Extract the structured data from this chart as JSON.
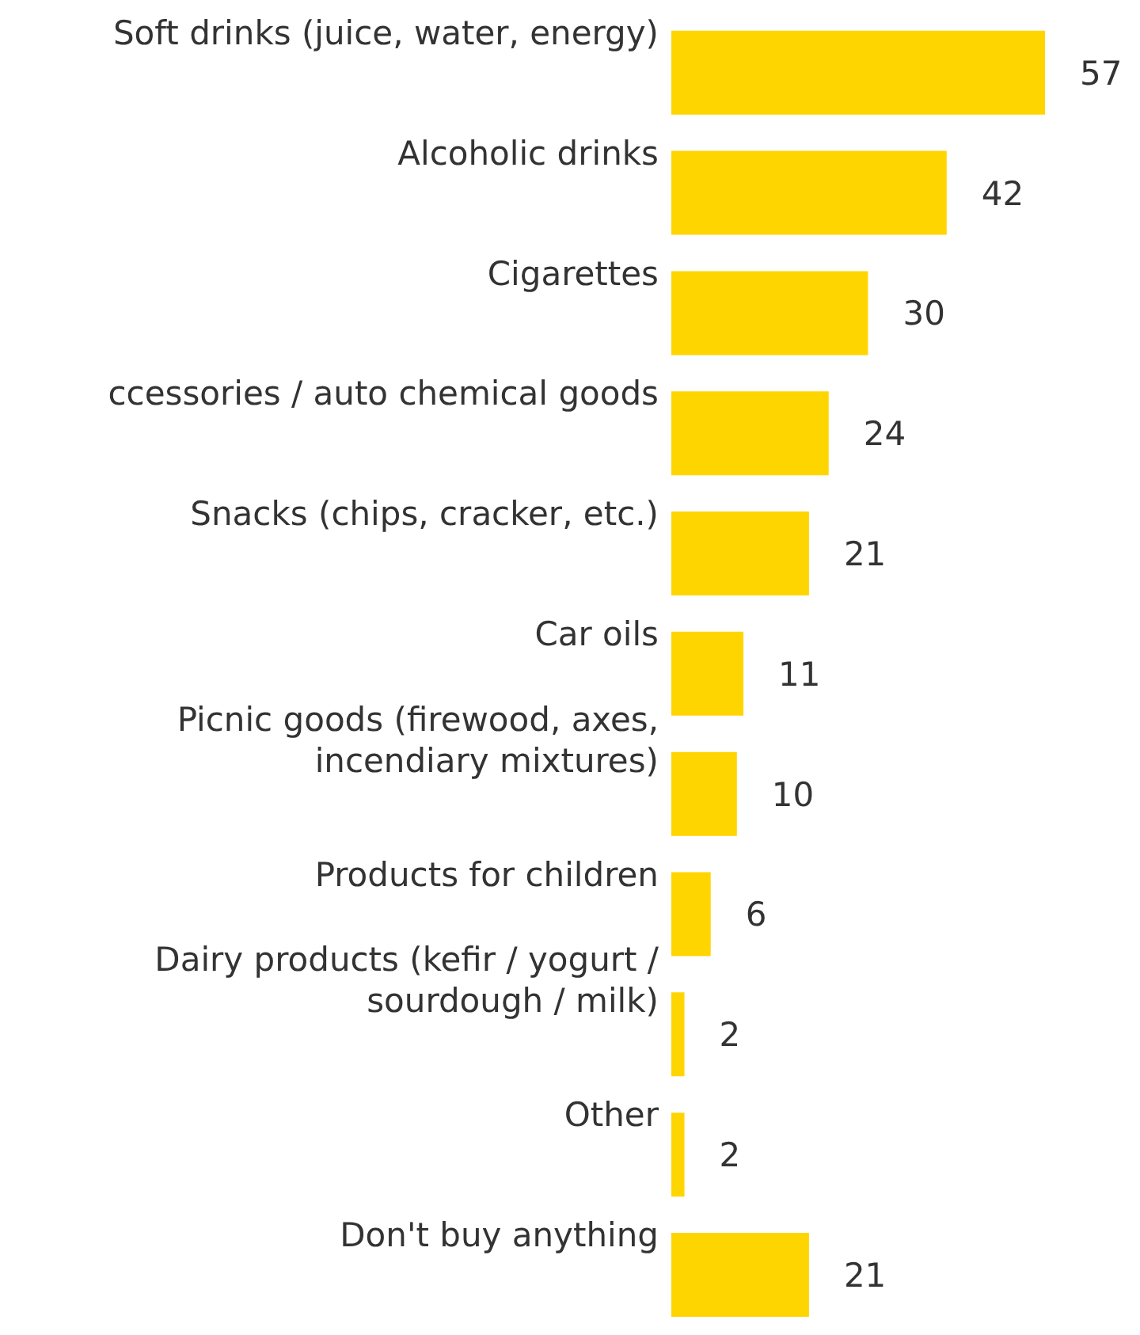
{
  "chart_data": {
    "type": "bar",
    "orientation": "horizontal",
    "data_labels": true,
    "color": "#ffd500",
    "categories": [
      "Soft drinks (juice, water, energy)",
      "Alcoholic drinks",
      "Cigarettes",
      "ccessories / auto chemical goods",
      "Snacks (chips, cracker, etc.)",
      "Car oils",
      "Picnic goods (firewood, axes, incendiary mixtures)",
      "Products for children",
      "Dairy products (kefir / yogurt / sourdough / milk)",
      "Other",
      "Don't buy anything"
    ],
    "values": [
      57,
      42,
      30,
      24,
      21,
      11,
      10,
      6,
      2,
      2,
      21
    ]
  }
}
